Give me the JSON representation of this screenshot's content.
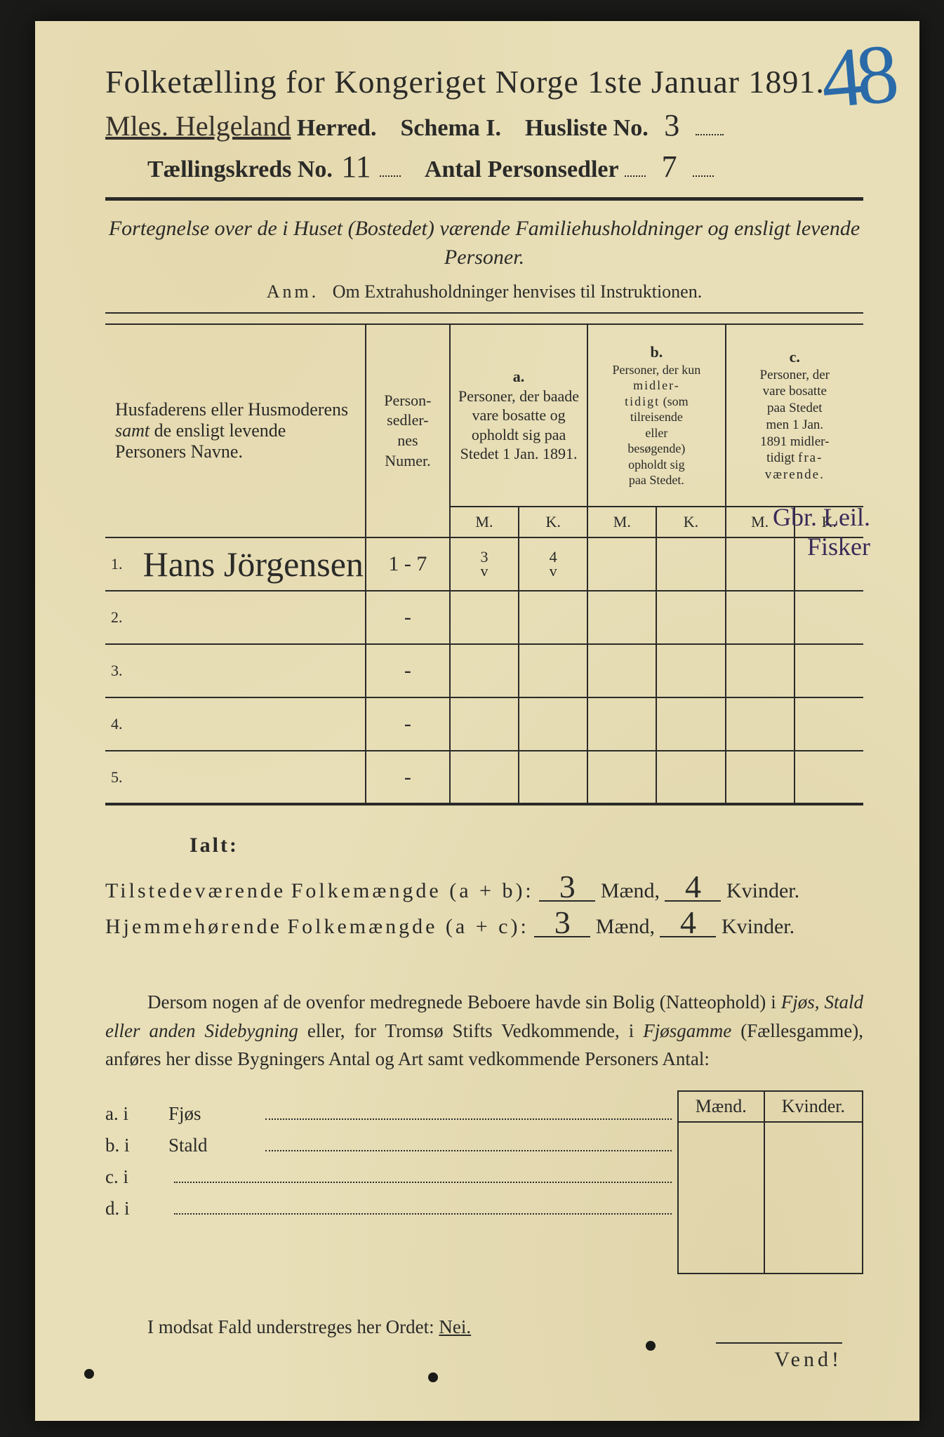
{
  "corner_number": "48",
  "header": {
    "title": "Folketælling for Kongeriget Norge 1ste Januar 1891.",
    "herred_handwriting": "Mles. Helgeland",
    "herred_label": "Herred.",
    "schema_label": "Schema I.",
    "husliste_label": "Husliste No.",
    "husliste_no": "3",
    "taellingskreds_label": "Tællingskreds No.",
    "taellingskreds_no": "11",
    "personsedler_label": "Antal Personsedler",
    "personsedler_no": "7"
  },
  "subtitle": "Fortegnelse over de i Huset (Bostedet) værende Familiehusholdninger og ensligt levende Personer.",
  "anm": "Anm.   Om Extrahusholdninger henvises til Instruktionen.",
  "table": {
    "col_names": "Husfaderens eller Husmoderens samt de ensligt levende Personers Navne.",
    "col_numer": "Person-\nsedler-\nnes\nNumer.",
    "a_label": "a.",
    "a_text": "Personer, der baade vare bosatte og opholdt sig paa Stedet 1 Jan. 1891.",
    "b_label": "b.",
    "b_text": "Personer, der kun midlertidigt (som tilreisende eller besøgende) opholdt sig paa Stedet.",
    "c_label": "c.",
    "c_text": "Personer, der vare bosatte paa Stedet men 1 Jan. 1891 midlertidigt fraværende.",
    "M": "M.",
    "K": "K.",
    "rows": [
      {
        "n": "1.",
        "name": "Hans Jörgensen",
        "numer": "1 - 7",
        "aM": "3",
        "aK": "4",
        "bM": "",
        "bK": "",
        "cM": "",
        "cK": ""
      },
      {
        "n": "2.",
        "name": "",
        "numer": "-",
        "aM": "",
        "aK": "",
        "bM": "",
        "bK": "",
        "cM": "",
        "cK": ""
      },
      {
        "n": "3.",
        "name": "",
        "numer": "-",
        "aM": "",
        "aK": "",
        "bM": "",
        "bK": "",
        "cM": "",
        "cK": ""
      },
      {
        "n": "4.",
        "name": "",
        "numer": "-",
        "aM": "",
        "aK": "",
        "bM": "",
        "bK": "",
        "cM": "",
        "cK": ""
      },
      {
        "n": "5.",
        "name": "",
        "numer": "-",
        "aM": "",
        "aK": "",
        "bM": "",
        "bK": "",
        "cM": "",
        "cK": ""
      }
    ],
    "margin_note_1": "Gbr. Leil.",
    "margin_note_2": "Fisker"
  },
  "ialt": {
    "label": "Ialt:",
    "line1_a": "Tilstedeværende",
    "line1_b": "Folkemængde (a + b):",
    "line2_a": "Hjemmehørende",
    "line2_b": "Folkemængde (a + c):",
    "maend": "Mænd,",
    "kvinder": "Kvinder.",
    "val1_m": "3",
    "val1_k": "4",
    "val2_m": "3",
    "val2_k": "4"
  },
  "para": {
    "text_1": "Dersom nogen af de ovenfor medregnede Beboere havde sin Bolig (Natteophold) i ",
    "it_1": "Fjøs, Stald eller anden Sidebygning",
    "text_2": " eller, for Tromsø Stifts Vedkommende, i ",
    "it_2": "Fjøsgamme",
    "text_3": " (Fællesgamme), anføres her disse Bygningers Antal og Art samt vedkommende Personers Antal:"
  },
  "mk": {
    "maend": "Mænd.",
    "kvinder": "Kvinder."
  },
  "abcd": {
    "a": "a.  i",
    "a2": "Fjøs",
    "b": "b.  i",
    "b2": "Stald",
    "c": "c.  i",
    "d": "d.  i"
  },
  "nei_line": "I modsat Fald understreges her Ordet: ",
  "nei": "Nei.",
  "vend": "Vend!"
}
